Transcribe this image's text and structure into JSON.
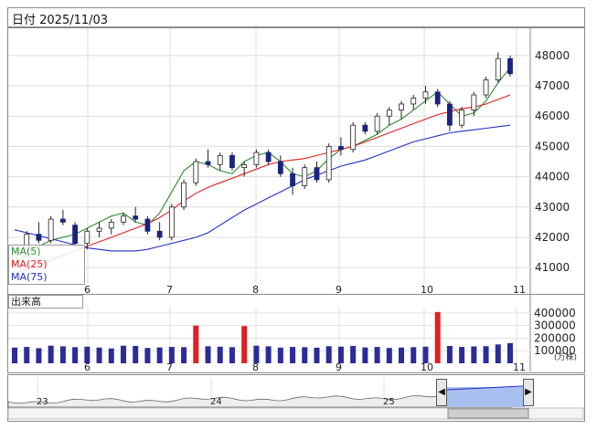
{
  "header": {
    "date_label": "日付 2025/11/03"
  },
  "legend": {
    "ma5": "MA(5)",
    "ma25": "MA(25)",
    "ma75": "MA(75)"
  },
  "volume_panel": {
    "label": "出来高",
    "unit": "(万株)"
  },
  "colors": {
    "ma5": "#2e8b2e",
    "ma25": "#e02020",
    "ma75": "#2030c8",
    "bear": "#1a237e",
    "volume": "#2b2b99",
    "volume_hi": "#e02020",
    "nav_fill": "#a9bff0"
  },
  "chart_data": [
    {
      "type": "candlestick",
      "y_ticks": [
        "48000",
        "47000",
        "46000",
        "45000",
        "44000",
        "43000",
        "42000",
        "41000"
      ],
      "ylim": [
        40100,
        48900
      ],
      "x_ticks": [
        "6",
        "7",
        "8",
        "9",
        "10",
        "11"
      ],
      "series": [
        {
          "name": "MA(5)",
          "values": [
            41100,
            41400,
            41700,
            41900,
            42000,
            42100,
            42300,
            42500,
            42700,
            42800,
            42500,
            42400,
            42800,
            43500,
            44200,
            44500,
            44400,
            44200,
            44100,
            44500,
            44700,
            44800,
            44500,
            44100,
            44000,
            44200,
            44600,
            44900,
            45000,
            45200,
            45400,
            45700,
            45900,
            46200,
            46500,
            46800,
            46400,
            46000,
            46100,
            46500,
            47100,
            47600
          ]
        },
        {
          "name": "MA(25)",
          "values": [
            40800,
            40950,
            41100,
            41250,
            41400,
            41550,
            41700,
            41850,
            42000,
            42150,
            42300,
            42450,
            42650,
            42900,
            43200,
            43450,
            43650,
            43800,
            43950,
            44100,
            44250,
            44400,
            44500,
            44550,
            44600,
            44700,
            44800,
            44900,
            45000,
            45150,
            45300,
            45450,
            45600,
            45750,
            45900,
            46050,
            46150,
            46250,
            46300,
            46400,
            46550,
            46700
          ]
        },
        {
          "name": "MA(75)",
          "values": [
            42250,
            42150,
            42050,
            41950,
            41850,
            41750,
            41650,
            41600,
            41550,
            41550,
            41550,
            41600,
            41700,
            41800,
            41900,
            42000,
            42150,
            42400,
            42650,
            42900,
            43100,
            43300,
            43500,
            43700,
            43900,
            44050,
            44200,
            44350,
            44450,
            44550,
            44700,
            44850,
            45000,
            45150,
            45250,
            45350,
            45450,
            45500,
            45550,
            45600,
            45650,
            45700
          ]
        }
      ],
      "candles": [
        [
          41200,
          41600,
          41000,
          41500
        ],
        [
          41600,
          42200,
          41500,
          42100
        ],
        [
          42100,
          42500,
          41800,
          41900
        ],
        [
          41900,
          42700,
          41800,
          42600
        ],
        [
          42600,
          42900,
          42400,
          42500
        ],
        [
          42400,
          42500,
          41700,
          41800
        ],
        [
          41800,
          42300,
          41600,
          42200
        ],
        [
          42200,
          42500,
          42000,
          42300
        ],
        [
          42300,
          42600,
          42100,
          42500
        ],
        [
          42500,
          42800,
          42400,
          42700
        ],
        [
          42700,
          43000,
          42500,
          42600
        ],
        [
          42600,
          42700,
          42100,
          42200
        ],
        [
          42200,
          42500,
          41900,
          42000
        ],
        [
          42000,
          43100,
          41900,
          43000
        ],
        [
          43000,
          43900,
          42900,
          43800
        ],
        [
          43800,
          44600,
          43700,
          44500
        ],
        [
          44500,
          44900,
          44300,
          44400
        ],
        [
          44400,
          44800,
          44200,
          44700
        ],
        [
          44700,
          44800,
          44200,
          44300
        ],
        [
          44300,
          44500,
          44000,
          44400
        ],
        [
          44400,
          44900,
          44300,
          44800
        ],
        [
          44800,
          44900,
          44400,
          44500
        ],
        [
          44500,
          44700,
          44000,
          44100
        ],
        [
          44100,
          44300,
          43400,
          43700
        ],
        [
          43700,
          44400,
          43600,
          44300
        ],
        [
          44300,
          44500,
          43800,
          43900
        ],
        [
          43900,
          45100,
          43800,
          45000
        ],
        [
          45000,
          45300,
          44700,
          44900
        ],
        [
          44900,
          45800,
          44800,
          45700
        ],
        [
          45700,
          45800,
          45400,
          45500
        ],
        [
          45500,
          46100,
          45400,
          46000
        ],
        [
          46000,
          46300,
          45700,
          46200
        ],
        [
          46200,
          46500,
          45900,
          46400
        ],
        [
          46400,
          46700,
          46200,
          46600
        ],
        [
          46600,
          47000,
          46400,
          46800
        ],
        [
          46800,
          46900,
          46300,
          46400
        ],
        [
          46400,
          46500,
          45500,
          45700
        ],
        [
          45700,
          46300,
          45600,
          46200
        ],
        [
          46200,
          46800,
          46000,
          46700
        ],
        [
          46700,
          47300,
          46600,
          47200
        ],
        [
          47200,
          48100,
          47100,
          47900
        ],
        [
          47900,
          48000,
          47300,
          47400
        ]
      ]
    },
    {
      "type": "bar",
      "name": "出来高",
      "y_ticks": [
        "400000",
        "300000",
        "200000",
        "100000"
      ],
      "ylim": [
        0,
        450000
      ],
      "x_ticks": [
        "6",
        "7",
        "8",
        "9",
        "10",
        "11"
      ],
      "values": [
        125000,
        130000,
        120000,
        140000,
        135000,
        128000,
        132000,
        125000,
        118000,
        140000,
        138000,
        122000,
        126000,
        130000,
        128000,
        300000,
        135000,
        132000,
        128000,
        296000,
        140000,
        135000,
        125000,
        130000,
        128000,
        124000,
        136000,
        132000,
        138000,
        126000,
        130000,
        122000,
        125000,
        128000,
        132000,
        408000,
        138000,
        130000,
        134000,
        136000,
        150000,
        160000
      ]
    },
    {
      "type": "area",
      "name": "navigator",
      "x_ticks": [
        "23",
        "24",
        "25"
      ]
    }
  ]
}
